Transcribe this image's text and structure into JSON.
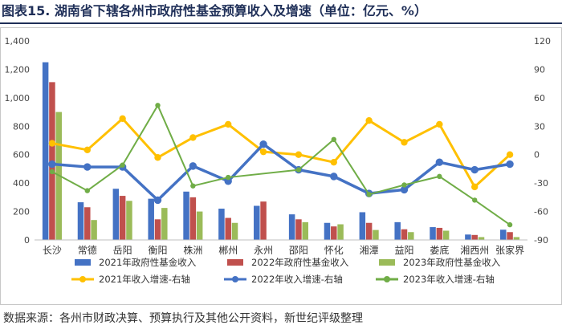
{
  "title": "图表15. 湖南省下辖各州市政府性基金预算收入及增速（单位：亿元、%）",
  "source": "数据来源：各州市财政决算、预算执行及其他公开资料，新世纪评级整理",
  "chart_data": {
    "type": "bar",
    "categories": [
      "长沙",
      "常德",
      "岳阳",
      "衡阳",
      "株洲",
      "郴州",
      "永州",
      "邵阳",
      "怀化",
      "湘潭",
      "益阳",
      "娄底",
      "湘西州",
      "张家界"
    ],
    "y_left": {
      "min": 0,
      "max": 1400,
      "step": 200,
      "ticks": [
        "0",
        "200",
        "400",
        "600",
        "800",
        "1,000",
        "1,200",
        "1,400"
      ]
    },
    "y_right": {
      "min": -90,
      "max": 120,
      "step": 30,
      "ticks": [
        "-90",
        "-60",
        "-30",
        "0",
        "30",
        "60",
        "90",
        "120"
      ]
    },
    "grid": false,
    "legend_position": "bottom",
    "bar_series": [
      {
        "name": "2021年政府性基金收入",
        "color": "#4472c4",
        "values": [
          1250,
          265,
          360,
          290,
          340,
          220,
          240,
          180,
          120,
          195,
          125,
          90,
          38,
          72
        ]
      },
      {
        "name": "2022年政府性基金收入",
        "color": "#c0504d",
        "values": [
          1110,
          230,
          310,
          145,
          300,
          155,
          270,
          145,
          95,
          120,
          75,
          85,
          35,
          55
        ]
      },
      {
        "name": "2023年政府性基金收入",
        "color": "#9bbb59",
        "values": [
          900,
          140,
          275,
          225,
          200,
          120,
          0,
          125,
          110,
          70,
          55,
          65,
          20,
          20
        ]
      }
    ],
    "line_series": [
      {
        "name": "2021年收入增速-右轴",
        "color": "#ffc000",
        "width": 3,
        "values": [
          12,
          5,
          38,
          -3,
          18,
          32,
          3,
          0,
          -8,
          36,
          13,
          32,
          -34,
          0
        ]
      },
      {
        "name": "2022年收入增速-右轴",
        "color": "#4472c4",
        "width": 3.5,
        "values": [
          -10,
          -13,
          -13,
          -48,
          -12,
          -28,
          11,
          -16,
          -23,
          -41,
          -37,
          -8,
          -16,
          -10
        ]
      },
      {
        "name": "2023年收入增速-右轴",
        "color": "#70ad47",
        "width": 2,
        "values": [
          -18,
          -38,
          -11,
          52,
          -33,
          -24,
          null,
          -16,
          16,
          -42,
          -32,
          -23,
          -48,
          -74
        ]
      }
    ]
  }
}
